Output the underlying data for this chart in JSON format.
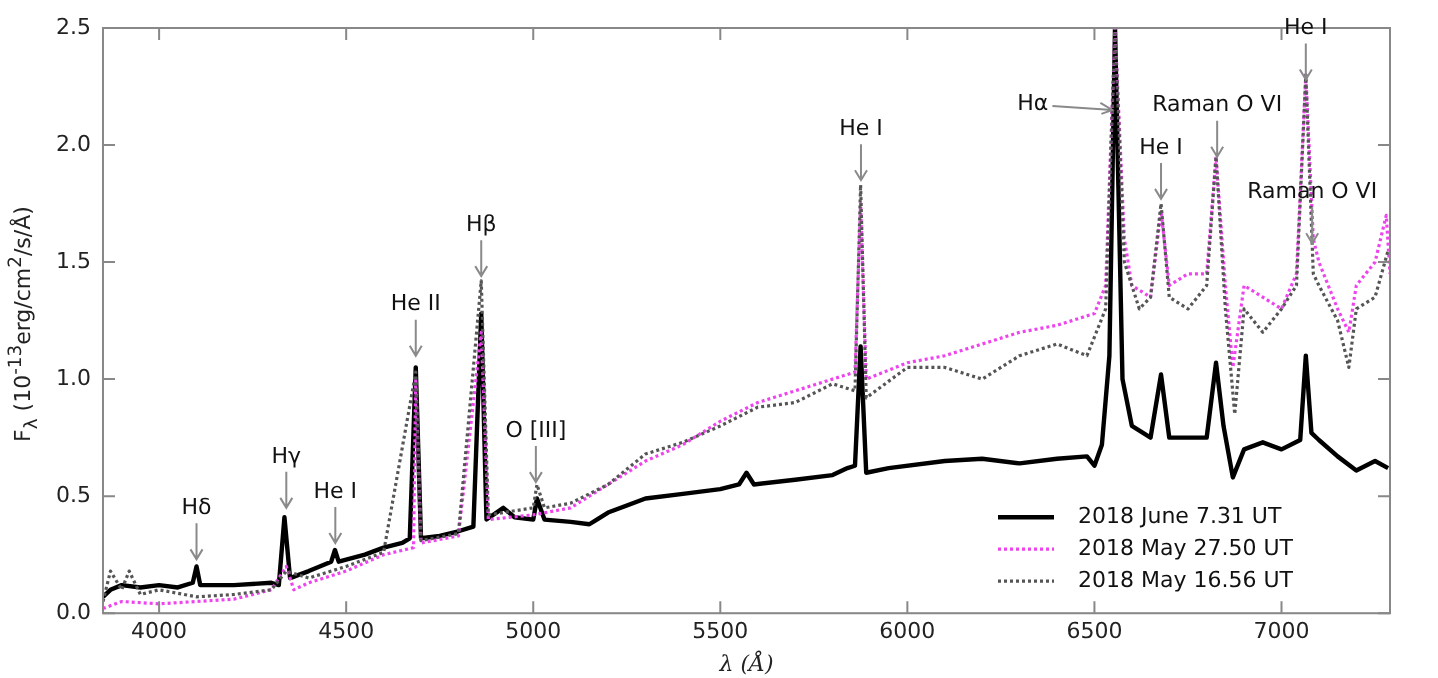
{
  "chart_data": {
    "type": "line",
    "xlabel": "λ (Å)",
    "ylabel": "F$_{λ}$ (10$^{-13}$erg/cm$^{2}$/s/Å)",
    "xlim": [
      3850,
      7290
    ],
    "xticks": [
      4000,
      4500,
      5000,
      5500,
      6000,
      6500,
      7000
    ],
    "ylim": [
      0,
      2.5
    ],
    "yticks": [
      {
        "value": 0,
        "label": "0.0"
      },
      {
        "value": 0.5,
        "label": "0.5"
      },
      {
        "value": 1,
        "label": "1.0"
      },
      {
        "value": 1.5,
        "label": "1.5"
      },
      {
        "value": 2,
        "label": "2.0"
      },
      {
        "value": 2.5,
        "label": "2.5"
      }
    ],
    "grid": false,
    "legend": "bottom right",
    "marker": "none",
    "series": [
      {
        "name": "2018 June 7.31 UT",
        "color": "#000000",
        "line_style": "solid",
        "x": [
          3850,
          3870,
          3900,
          3950,
          4000,
          4050,
          4090,
          4100,
          4110,
          4200,
          4300,
          4320,
          4335,
          4350,
          4400,
          4460,
          4470,
          4480,
          4550,
          4600,
          4650,
          4670,
          4686,
          4700,
          4750,
          4800,
          4840,
          4861,
          4875,
          4920,
          4950,
          5000,
          5010,
          5030,
          5100,
          5150,
          5170,
          5200,
          5300,
          5400,
          5500,
          5550,
          5570,
          5590,
          5700,
          5800,
          5840,
          5860,
          5875,
          5890,
          5950,
          6100,
          6200,
          6300,
          6400,
          6480,
          6500,
          6520,
          6540,
          6555,
          6575,
          6600,
          6650,
          6678,
          6700,
          6800,
          6825,
          6845,
          6870,
          6900,
          6950,
          7000,
          7050,
          7065,
          7080,
          7100,
          7150,
          7200,
          7250,
          7285
        ],
        "values": [
          0.07,
          0.1,
          0.12,
          0.11,
          0.12,
          0.11,
          0.13,
          0.2,
          0.12,
          0.12,
          0.13,
          0.12,
          0.41,
          0.15,
          0.18,
          0.22,
          0.27,
          0.22,
          0.25,
          0.28,
          0.3,
          0.32,
          1.05,
          0.32,
          0.33,
          0.35,
          0.37,
          1.28,
          0.4,
          0.45,
          0.41,
          0.4,
          0.49,
          0.4,
          0.39,
          0.38,
          0.4,
          0.43,
          0.49,
          0.51,
          0.53,
          0.55,
          0.6,
          0.55,
          0.57,
          0.59,
          0.62,
          0.63,
          1.14,
          0.6,
          0.62,
          0.65,
          0.66,
          0.64,
          0.66,
          0.67,
          0.63,
          0.72,
          1.1,
          2.5,
          1.0,
          0.8,
          0.75,
          1.02,
          0.75,
          0.75,
          1.07,
          0.8,
          0.58,
          0.7,
          0.73,
          0.7,
          0.74,
          1.1,
          0.77,
          0.74,
          0.67,
          0.61,
          0.65,
          0.62
        ]
      },
      {
        "name": "2018 May 27.50 UT",
        "color": "#ee44ee",
        "line_style": "dotted",
        "x": [
          3850,
          3900,
          4000,
          4100,
          4200,
          4300,
          4340,
          4360,
          4400,
          4500,
          4600,
          4680,
          4686,
          4700,
          4800,
          4861,
          4880,
          5000,
          5100,
          5200,
          5300,
          5400,
          5500,
          5600,
          5700,
          5800,
          5860,
          5875,
          5890,
          6000,
          6100,
          6200,
          6300,
          6400,
          6500,
          6530,
          6555,
          6580,
          6600,
          6650,
          6678,
          6700,
          6750,
          6800,
          6825,
          6850,
          6870,
          6900,
          6950,
          7000,
          7040,
          7065,
          7085,
          7100,
          7150,
          7180,
          7200,
          7250,
          7280,
          7290
        ],
        "values": [
          0.02,
          0.05,
          0.04,
          0.05,
          0.06,
          0.1,
          0.2,
          0.1,
          0.13,
          0.18,
          0.25,
          0.28,
          1.0,
          0.3,
          0.33,
          1.2,
          0.4,
          0.42,
          0.45,
          0.55,
          0.65,
          0.72,
          0.82,
          0.9,
          0.95,
          1.0,
          1.03,
          1.75,
          1.0,
          1.07,
          1.1,
          1.15,
          1.2,
          1.23,
          1.28,
          1.4,
          2.5,
          1.6,
          1.4,
          1.35,
          1.72,
          1.4,
          1.45,
          1.45,
          1.95,
          1.4,
          1.05,
          1.4,
          1.35,
          1.3,
          1.45,
          2.3,
          1.6,
          1.5,
          1.3,
          1.2,
          1.4,
          1.5,
          1.7,
          1.45
        ]
      },
      {
        "name": "2018 May 16.56 UT",
        "color": "#555555",
        "line_style": "dotted",
        "x": [
          3850,
          3870,
          3900,
          3920,
          3950,
          4000,
          4100,
          4200,
          4300,
          4340,
          4400,
          4500,
          4600,
          4686,
          4700,
          4800,
          4861,
          4880,
          5000,
          5010,
          5030,
          5100,
          5200,
          5300,
          5400,
          5500,
          5600,
          5700,
          5800,
          5860,
          5875,
          5890,
          6000,
          6100,
          6200,
          6300,
          6400,
          6480,
          6530,
          6555,
          6580,
          6620,
          6650,
          6678,
          6700,
          6750,
          6800,
          6825,
          6850,
          6875,
          6900,
          6950,
          7000,
          7040,
          7065,
          7085,
          7100,
          7150,
          7180,
          7200,
          7250,
          7285
        ],
        "values": [
          0.05,
          0.18,
          0.1,
          0.18,
          0.08,
          0.1,
          0.07,
          0.08,
          0.1,
          0.18,
          0.15,
          0.2,
          0.26,
          1.03,
          0.31,
          0.34,
          1.42,
          0.42,
          0.45,
          0.55,
          0.45,
          0.47,
          0.55,
          0.68,
          0.73,
          0.8,
          0.88,
          0.9,
          0.98,
          0.95,
          1.83,
          0.92,
          1.05,
          1.05,
          1.0,
          1.1,
          1.15,
          1.1,
          1.3,
          2.5,
          1.5,
          1.3,
          1.35,
          1.75,
          1.35,
          1.3,
          1.4,
          1.95,
          1.3,
          0.85,
          1.3,
          1.2,
          1.3,
          1.4,
          2.3,
          1.45,
          1.4,
          1.25,
          1.05,
          1.3,
          1.35,
          1.55
        ]
      }
    ],
    "annotations": [
      {
        "text": "Hδ",
        "x": 4100,
        "y": 0.23
      },
      {
        "text": "Hγ",
        "x": 4340,
        "y": 0.45
      },
      {
        "text": "He I",
        "x": 4471,
        "y": 0.3
      },
      {
        "text": "He II",
        "x": 4686,
        "y": 1.1
      },
      {
        "text": "Hβ",
        "x": 4861,
        "y": 1.44
      },
      {
        "text": "O [III]",
        "x": 5007,
        "y": 0.56
      },
      {
        "text": "He I",
        "x": 5876,
        "y": 1.85
      },
      {
        "text": "Hα",
        "x": 6548,
        "y": 2.15
      },
      {
        "text": "He I",
        "x": 6678,
        "y": 1.77
      },
      {
        "text": "Raman O VI",
        "x": 6828,
        "y": 1.95
      },
      {
        "text": "He I",
        "x": 7065,
        "y": 2.28
      },
      {
        "text": "Raman O VI",
        "x": 7082,
        "y": 1.58
      }
    ]
  }
}
